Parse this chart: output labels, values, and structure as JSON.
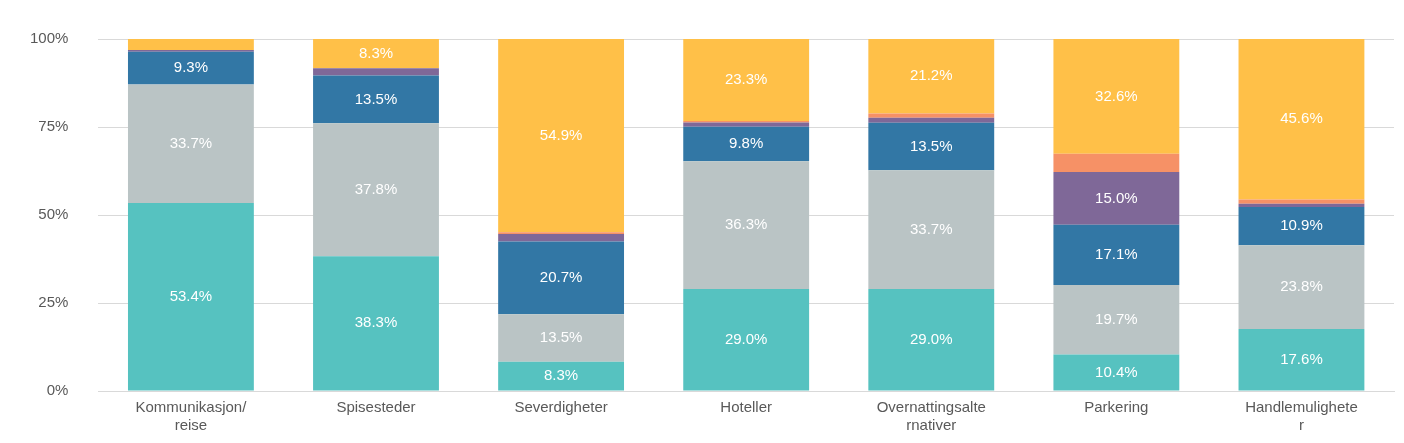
{
  "chart_data": {
    "type": "bar",
    "stacked": true,
    "categories": [
      "Kommunikasjon/\nreise",
      "Spisesteder",
      "Severdigheter",
      "Hoteller",
      "Overnattingsalte\nrnativer",
      "Parkering",
      "Handlemulighete\nr"
    ],
    "series": [
      {
        "color": "#56c2c0",
        "values": [
          53.4,
          38.3,
          8.3,
          29.0,
          29.0,
          10.4,
          17.6
        ],
        "value_labels": [
          "53.4%",
          "38.3%",
          "8.3%",
          "29.0%",
          "29.0%",
          "10.4%",
          "17.6%"
        ]
      },
      {
        "color": "#bac4c5",
        "values": [
          33.7,
          37.8,
          13.5,
          36.3,
          33.7,
          19.7,
          23.8
        ],
        "value_labels": [
          "33.7%",
          "37.8%",
          "13.5%",
          "36.3%",
          "33.7%",
          "19.7%",
          "23.8%"
        ]
      },
      {
        "color": "#3277a5",
        "values": [
          9.3,
          13.5,
          20.7,
          9.8,
          13.5,
          17.1,
          10.9
        ],
        "value_labels": [
          "9.3%",
          "13.5%",
          "20.7%",
          "9.8%",
          "13.5%",
          "17.1%",
          "10.9%"
        ]
      },
      {
        "color": "#7f6898",
        "values": [
          0.5,
          2.1,
          2.1,
          1.2,
          1.4,
          15.0,
          0.9
        ],
        "value_labels": [
          null,
          null,
          null,
          null,
          null,
          "15.0%",
          null
        ]
      },
      {
        "color": "#f69166",
        "values": [
          0,
          0,
          0.5,
          0.4,
          1.2,
          5.2,
          1.2
        ]
      },
      {
        "color": "#ffc048",
        "values": [
          3.1,
          8.3,
          54.9,
          23.3,
          21.2,
          32.6,
          45.6
        ],
        "value_labels": [
          null,
          "8.3%",
          "54.9%",
          "23.3%",
          "21.2%",
          "32.6%",
          "45.6%"
        ]
      }
    ],
    "ylim": [
      0,
      100
    ],
    "yticks": [
      {
        "value": 0,
        "label": "0%"
      },
      {
        "value": 25,
        "label": "25%"
      },
      {
        "value": 50,
        "label": "50%"
      },
      {
        "value": 75,
        "label": "75%"
      },
      {
        "value": 100,
        "label": "100%"
      }
    ],
    "grid": "y",
    "legend": false
  }
}
